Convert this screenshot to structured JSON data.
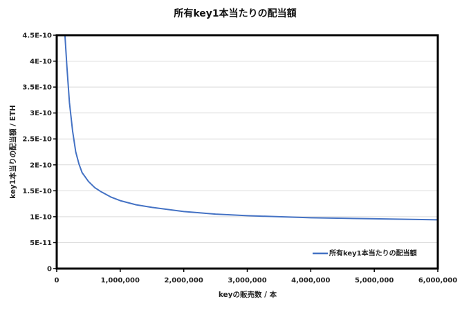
{
  "chart_data": {
    "type": "line",
    "title": "所有key1本当たりの配当額",
    "xlabel": "keyの販売数 / 本",
    "ylabel": "key1本当りの配当額 / ETH",
    "xlim": [
      0,
      6000000
    ],
    "ylim": [
      0,
      4.5e-10
    ],
    "x_ticks": [
      0,
      1000000,
      2000000,
      3000000,
      4000000,
      5000000,
      6000000
    ],
    "x_tick_labels": [
      "0",
      "1,000,000",
      "2,000,000",
      "3,000,000",
      "4,000,000",
      "5,000,000",
      "6,000,000"
    ],
    "y_ticks": [
      0,
      5e-11,
      1e-10,
      1.5e-10,
      2e-10,
      2.5e-10,
      3e-10,
      3.5e-10,
      4e-10,
      4.5e-10
    ],
    "y_tick_labels": [
      "0",
      "5E-11",
      "1E-10",
      "1.5E-10",
      "2E-10",
      "2.5E-10",
      "3E-10",
      "3.5E-10",
      "4E-10",
      "4.5E-10"
    ],
    "grid": "horizontal",
    "legend_position": "bottom-right",
    "series": [
      {
        "name": "所有key1本当たりの配当額",
        "color": "#4472C4",
        "x": [
          130000,
          160000,
          200000,
          250000,
          300000,
          350000,
          400000,
          500000,
          600000,
          700000,
          850000,
          1000000,
          1250000,
          1500000,
          2000000,
          2500000,
          3000000,
          3500000,
          4000000,
          4500000,
          5000000,
          5500000,
          6000000
        ],
        "y": [
          4.5e-10,
          3.9e-10,
          3.2e-10,
          2.65e-10,
          2.25e-10,
          2.02e-10,
          1.85e-10,
          1.68e-10,
          1.56e-10,
          1.48e-10,
          1.38e-10,
          1.31e-10,
          1.23e-10,
          1.18e-10,
          1.1e-10,
          1.05e-10,
          1.02e-10,
          1e-10,
          9.8e-11,
          9.7e-11,
          9.6e-11,
          9.5e-11,
          9.4e-11
        ]
      }
    ]
  }
}
